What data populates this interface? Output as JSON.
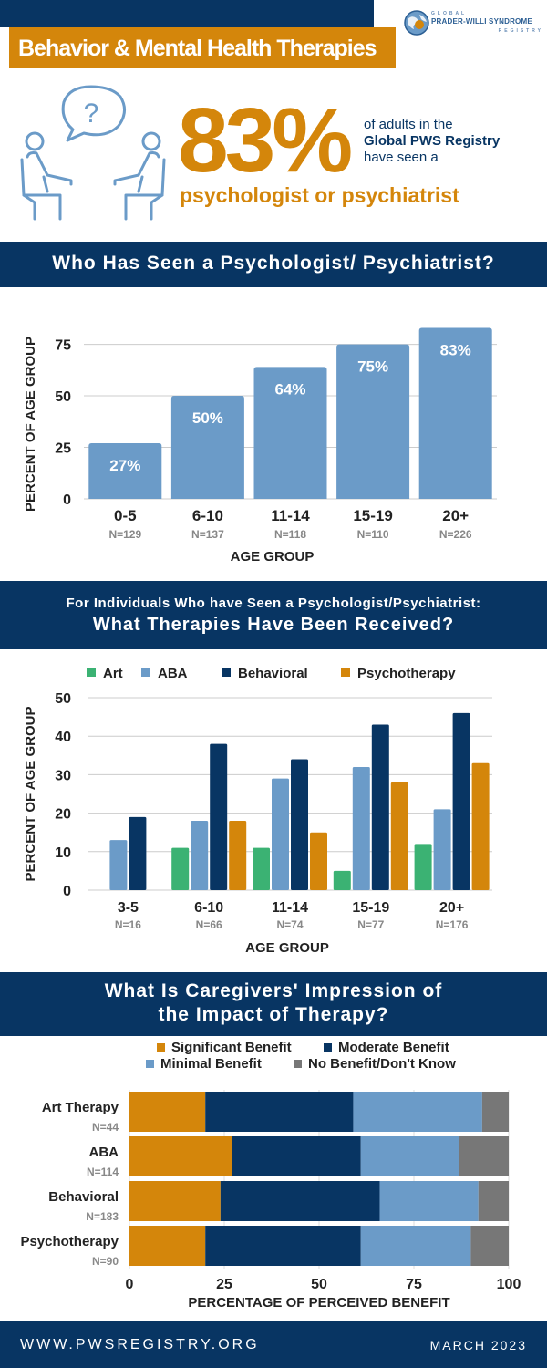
{
  "header": {
    "title": "Behavior & Mental Health Therapies",
    "logo_top": "GLOBAL",
    "logo_main": "PRADER-WILLI SYNDROME",
    "logo_sub": "REGISTRY"
  },
  "hero": {
    "percent": "83%",
    "line1": "of adults in the",
    "line2": "Global PWS Registry",
    "line3": "have seen a",
    "role": "psychologist or psychiatrist"
  },
  "colors": {
    "navy": "#083563",
    "orange": "#d4860b",
    "blue": "#6b9bc8",
    "green": "#3bb273",
    "gray": "#777777"
  },
  "section1": {
    "title": "Who Has Seen a Psychologist/ Psychiatrist?"
  },
  "section2": {
    "line1": "For Individuals Who have Seen a Psychologist/Psychiatrist:",
    "line2": "What Therapies Have Been Received?"
  },
  "section3": {
    "line1": "What Is Caregivers' Impression of",
    "line2": "the Impact of Therapy?"
  },
  "footer": {
    "url": "WWW.PWSREGISTRY.ORG",
    "date": "MARCH 2023"
  },
  "chart_data": [
    {
      "type": "bar",
      "categories": [
        "0-5",
        "6-10",
        "11-14",
        "15-19",
        "20+"
      ],
      "n_labels": [
        "N=129",
        "N=137",
        "N=118",
        "N=110",
        "N=226"
      ],
      "values": [
        27,
        50,
        64,
        75,
        83
      ],
      "data_labels": [
        "27%",
        "50%",
        "64%",
        "75%",
        "83%"
      ],
      "xlabel": "AGE GROUP",
      "ylabel": "PERCENT OF AGE GROUP",
      "yticks": [
        0,
        25,
        50,
        75
      ],
      "ylim": [
        0,
        85
      ],
      "grid": true
    },
    {
      "type": "bar",
      "categories": [
        "3-5",
        "6-10",
        "11-14",
        "15-19",
        "20+"
      ],
      "n_labels": [
        "N=16",
        "N=66",
        "N=74",
        "N=77",
        "N=176"
      ],
      "series": [
        {
          "name": "Art",
          "color": "#3bb273",
          "values": [
            0,
            11,
            11,
            5,
            12
          ]
        },
        {
          "name": "ABA",
          "color": "#6b9bc8",
          "values": [
            13,
            18,
            29,
            32,
            21
          ]
        },
        {
          "name": "Behavioral",
          "color": "#083563",
          "values": [
            19,
            38,
            34,
            43,
            46
          ]
        },
        {
          "name": "Psychotherapy",
          "color": "#d4860b",
          "values": [
            0,
            18,
            15,
            28,
            33
          ]
        }
      ],
      "xlabel": "AGE GROUP",
      "ylabel": "PERCENT OF AGE GROUP",
      "yticks": [
        0,
        10,
        20,
        30,
        40,
        50
      ],
      "ylim": [
        0,
        50
      ],
      "grid": true,
      "legend": "top"
    },
    {
      "type": "bar",
      "orientation": "horizontal",
      "stacked": true,
      "categories": [
        "Art Therapy",
        "ABA",
        "Behavioral",
        "Psychotherapy"
      ],
      "n_labels": [
        "N=44",
        "N=114",
        "N=183",
        "N=90"
      ],
      "series": [
        {
          "name": "Significant Benefit",
          "color": "#d4860b",
          "values": [
            20,
            27,
            24,
            20
          ]
        },
        {
          "name": "Moderate Benefit",
          "color": "#083563",
          "values": [
            39,
            34,
            42,
            41
          ]
        },
        {
          "name": "Minimal Benefit",
          "color": "#6b9bc8",
          "values": [
            34,
            26,
            26,
            29
          ]
        },
        {
          "name": "No Benefit/Don't Know",
          "color": "#777777",
          "values": [
            7,
            13,
            8,
            10
          ]
        }
      ],
      "xlabel": "PERCENTAGE OF PERCEIVED BENEFIT",
      "xticks": [
        0,
        25,
        50,
        75,
        100
      ],
      "xlim": [
        0,
        100
      ],
      "legend": "top"
    }
  ]
}
